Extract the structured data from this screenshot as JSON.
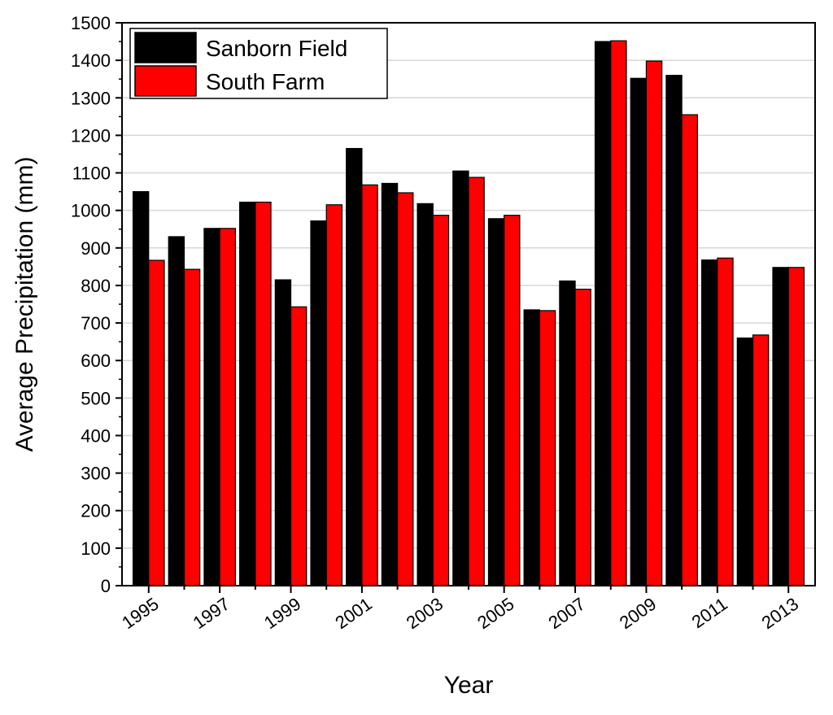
{
  "chart_data": {
    "type": "bar",
    "title": "",
    "xlabel": "Year",
    "ylabel": "Average Precipitation (mm)",
    "ylim": [
      0,
      1500
    ],
    "yticks": [
      0,
      100,
      200,
      300,
      400,
      500,
      600,
      700,
      800,
      900,
      1000,
      1100,
      1200,
      1300,
      1400,
      1500
    ],
    "grid": true,
    "legend_position": "top-left",
    "categories": [
      "1995",
      "1996",
      "1997",
      "1998",
      "1999",
      "2000",
      "2001",
      "2002",
      "2003",
      "2004",
      "2005",
      "2006",
      "2007",
      "2008",
      "2009",
      "2010",
      "2011",
      "2012",
      "2013"
    ],
    "xtick_labels": [
      "1995",
      "1997",
      "1999",
      "2001",
      "2003",
      "2005",
      "2007",
      "2009",
      "2011",
      "2013"
    ],
    "series": [
      {
        "name": "Sanborn Field",
        "color": "#000000",
        "values": [
          1050,
          930,
          952,
          1022,
          815,
          972,
          1165,
          1072,
          1018,
          1105,
          978,
          735,
          812,
          1450,
          1352,
          1360,
          868,
          660,
          848
        ]
      },
      {
        "name": "South Farm",
        "color": "#ff0000",
        "values": [
          867,
          843,
          952,
          1022,
          743,
          1015,
          1068,
          1047,
          987,
          1088,
          987,
          733,
          790,
          1452,
          1398,
          1255,
          873,
          668,
          848
        ]
      }
    ]
  }
}
